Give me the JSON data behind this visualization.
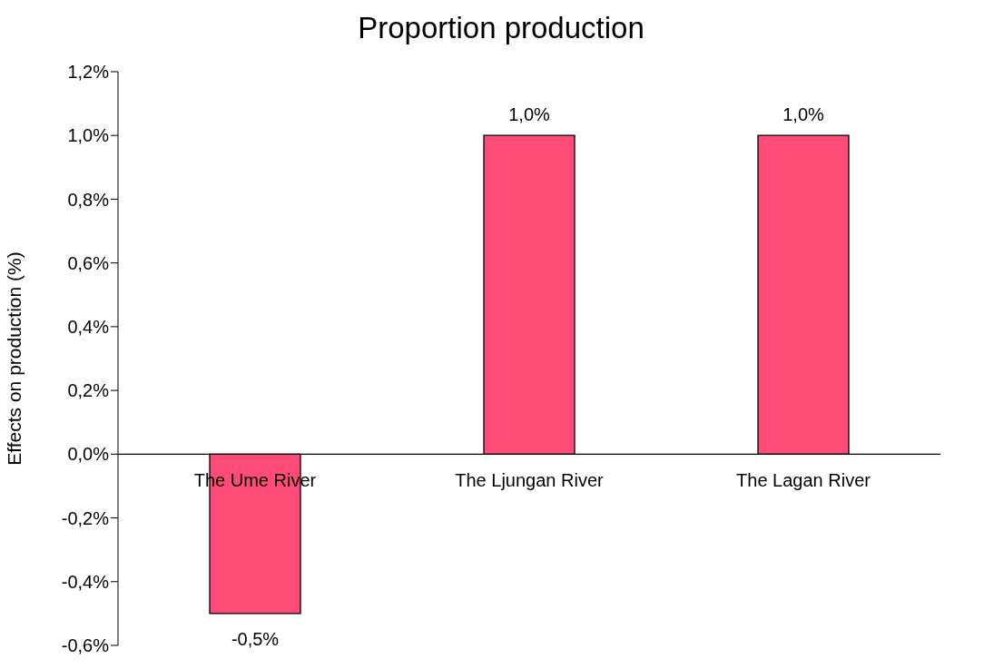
{
  "chart_data": {
    "type": "bar",
    "title": "Proportion production",
    "ylabel": "Effects on production (%)",
    "categories": [
      "The Ume River",
      "The Ljungan River",
      "The Lagan River"
    ],
    "values": [
      -0.5,
      1.0,
      1.0
    ],
    "value_labels": [
      "-0,5%",
      "1,0%",
      "1,0%"
    ],
    "color": "#ff4b78",
    "ylim": [
      -0.6,
      1.2
    ],
    "yticks": [
      {
        "value": -0.6,
        "label": "-0,6%"
      },
      {
        "value": -0.4,
        "label": "-0,4%"
      },
      {
        "value": -0.2,
        "label": "-0,2%"
      },
      {
        "value": 0,
        "label": "0,0%"
      },
      {
        "value": 0.2,
        "label": "0,2%"
      },
      {
        "value": 0.4,
        "label": "0,4%"
      },
      {
        "value": 0.6,
        "label": "0,6%"
      },
      {
        "value": 0.8,
        "label": "0,8%"
      },
      {
        "value": 1.0,
        "label": "1,0%"
      },
      {
        "value": 1.2,
        "label": "1,2%"
      }
    ],
    "grid": false,
    "legend": false
  }
}
